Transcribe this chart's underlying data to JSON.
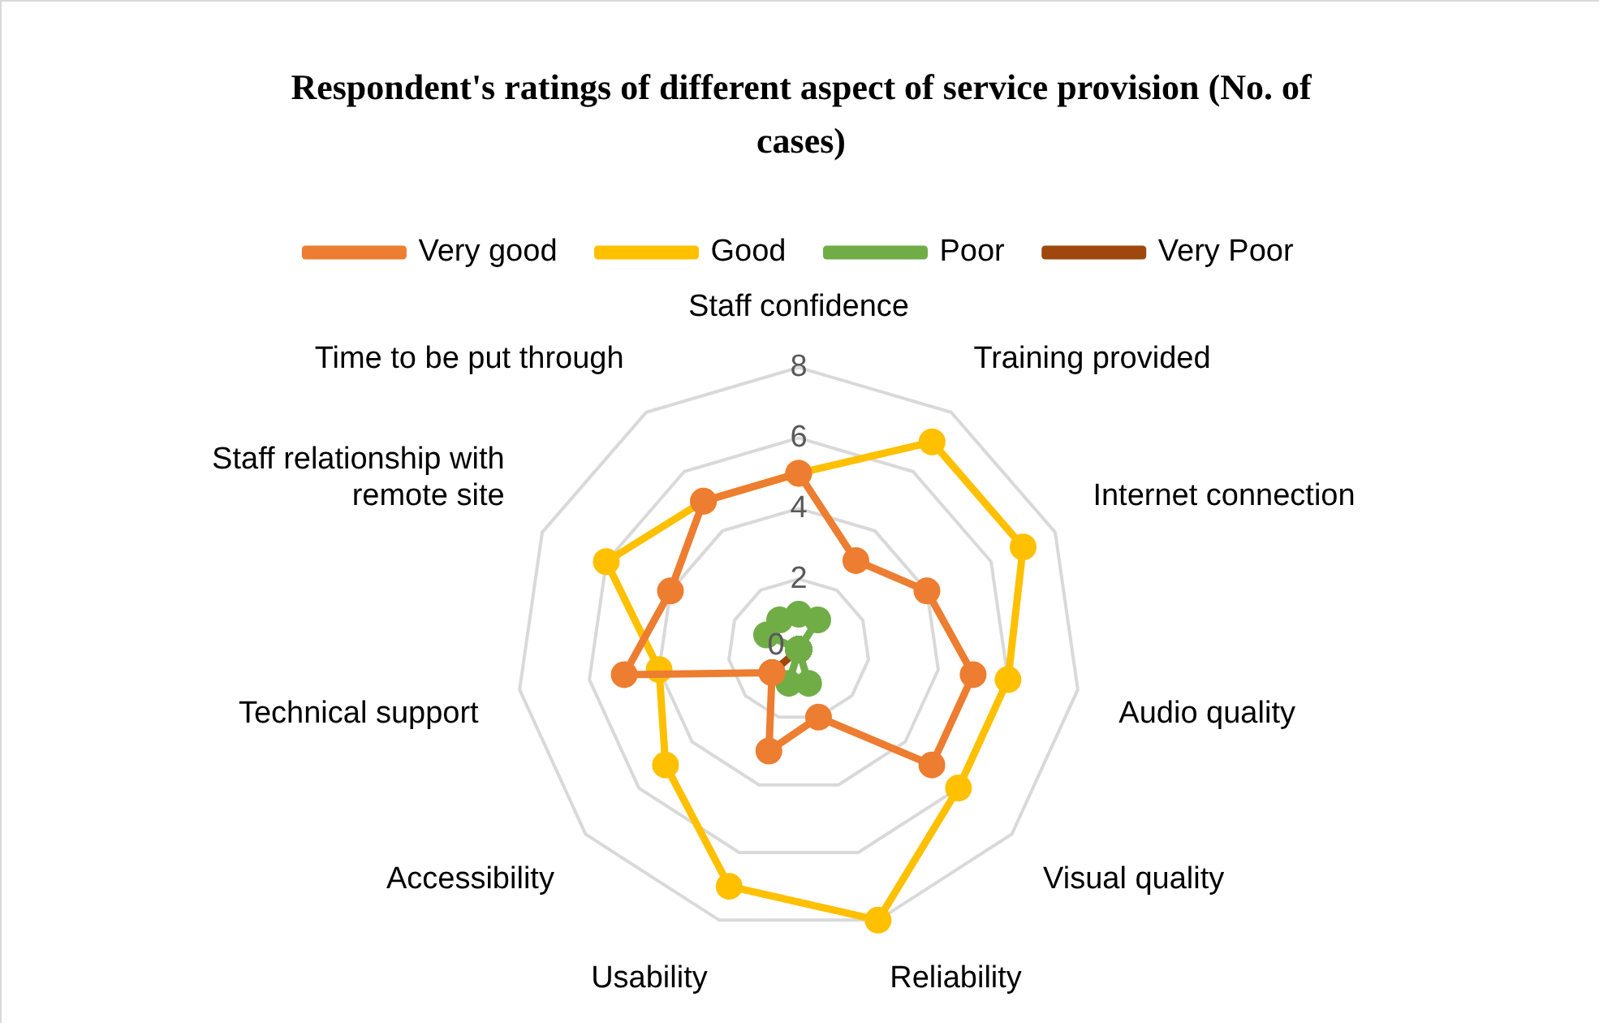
{
  "chart_data": {
    "type": "radar",
    "title": "Respondent's ratings of different aspect of service provision (No. of cases)",
    "categories": [
      "Staff confidence",
      "Training provided",
      "Internet connection",
      "Audio quality",
      "Visual quality",
      "Reliability",
      "Usability",
      "Accessibility",
      "Technical support",
      "Staff relationship with remote site",
      "Time to be put through"
    ],
    "series": [
      {
        "name": "Very good",
        "color": "#ed7d31",
        "values": [
          5,
          3,
          4,
          5,
          5,
          2,
          3,
          1,
          5,
          4,
          5
        ]
      },
      {
        "name": "Good",
        "color": "#ffc000",
        "values": [
          5,
          7,
          7,
          6,
          6,
          8,
          7,
          5,
          4,
          6,
          5
        ]
      },
      {
        "name": "Poor",
        "color": "#70ad47",
        "values": [
          1,
          1,
          0,
          0,
          0,
          1,
          1,
          0,
          0,
          1,
          1
        ]
      },
      {
        "name": "Very Poor",
        "color": "#9e480e",
        "values": [
          0,
          0,
          0,
          0,
          0,
          0,
          0,
          1,
          0,
          0,
          0
        ]
      }
    ],
    "ylim": [
      0,
      8
    ],
    "yticks": [
      0,
      2,
      4,
      6,
      8
    ],
    "grid": true,
    "legend": "top",
    "marker": "circle"
  }
}
